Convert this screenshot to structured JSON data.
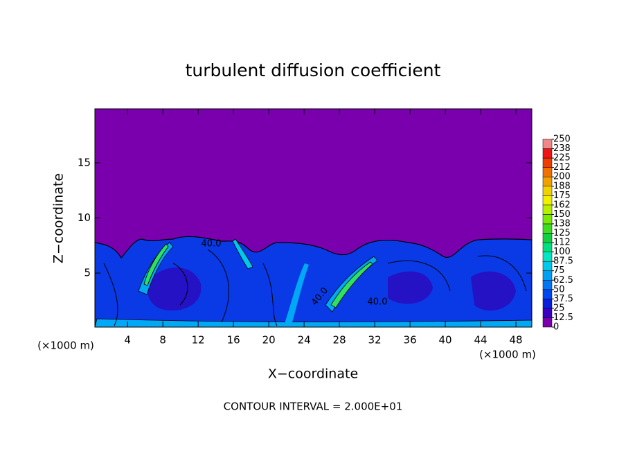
{
  "chart_data": {
    "type": "contour",
    "title": "turbulent diffusion coefficient",
    "x_label": "X−coordinate",
    "y_label": "Z−coordinate",
    "x_unit_left": "(×1000 m)",
    "x_unit_right": "(×1000 m)",
    "footer": "CONTOUR INTERVAL = 2.000E+01",
    "xlim": [
      0.3,
      49.8
    ],
    "ylim": [
      0.1,
      19.9
    ],
    "xticks": [
      4,
      8,
      12,
      16,
      20,
      24,
      28,
      32,
      36,
      40,
      44,
      48
    ],
    "yticks": [
      5,
      10,
      15
    ],
    "contour_labels": [
      "40.0",
      "40.0",
      "40.0"
    ],
    "colorbar": {
      "levels": [
        0,
        12.5,
        25,
        37.5,
        50,
        62.5,
        75,
        87.5,
        100,
        {
          "value": 112.5,
          "label": "112"
        },
        125,
        {
          "value": 137.5,
          "label": "138"
        },
        150,
        {
          "value": 162.5,
          "label": "162"
        },
        175,
        {
          "value": 187.5,
          "label": "188"
        },
        200,
        {
          "value": 212.5,
          "label": "212"
        },
        225,
        {
          "value": 237.5,
          "label": "238"
        },
        250
      ],
      "colors": [
        "#7a00ad",
        "#3a00c8",
        "#0a1ee0",
        "#0046f0",
        "#0078f5",
        "#00a0f5",
        "#00c8ec",
        "#00e6c0",
        "#00e080",
        "#10d040",
        "#40dc20",
        "#78ec00",
        "#b8f000",
        "#f0f000",
        "#f0d200",
        "#f0a000",
        "#f07000",
        "#f03c00",
        "#f01414",
        "#f08888"
      ]
    }
  }
}
